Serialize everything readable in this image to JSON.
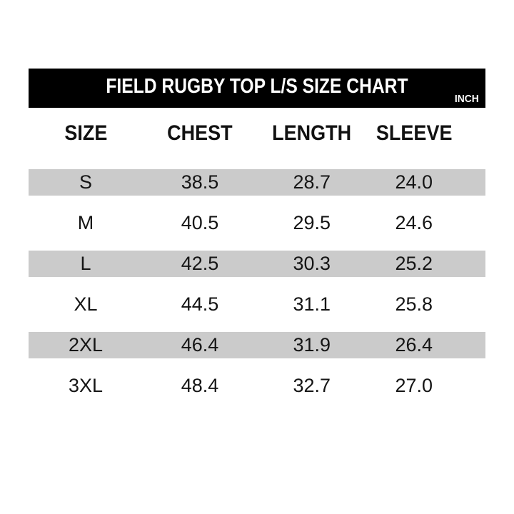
{
  "header": {
    "title": "FIELD RUGBY TOP L/S SIZE CHART",
    "unit": "INCH"
  },
  "table": {
    "columns": [
      "SIZE",
      "CHEST",
      "LENGTH",
      "SLEEVE"
    ],
    "rows": [
      {
        "size": "S",
        "chest": "38.5",
        "length": "28.7",
        "sleeve": "24.0"
      },
      {
        "size": "M",
        "chest": "40.5",
        "length": "29.5",
        "sleeve": "24.6"
      },
      {
        "size": "L",
        "chest": "42.5",
        "length": "30.3",
        "sleeve": "25.2"
      },
      {
        "size": "XL",
        "chest": "44.5",
        "length": "31.1",
        "sleeve": "25.8"
      },
      {
        "size": "2XL",
        "chest": "46.4",
        "length": "31.9",
        "sleeve": "26.4"
      },
      {
        "size": "3XL",
        "chest": "48.4",
        "length": "32.7",
        "sleeve": "27.0"
      }
    ]
  },
  "colors": {
    "bar_background": "#000000",
    "bar_text": "#ffffff",
    "stripe": "#cbcbcb",
    "text": "#151515",
    "background": "#ffffff"
  }
}
